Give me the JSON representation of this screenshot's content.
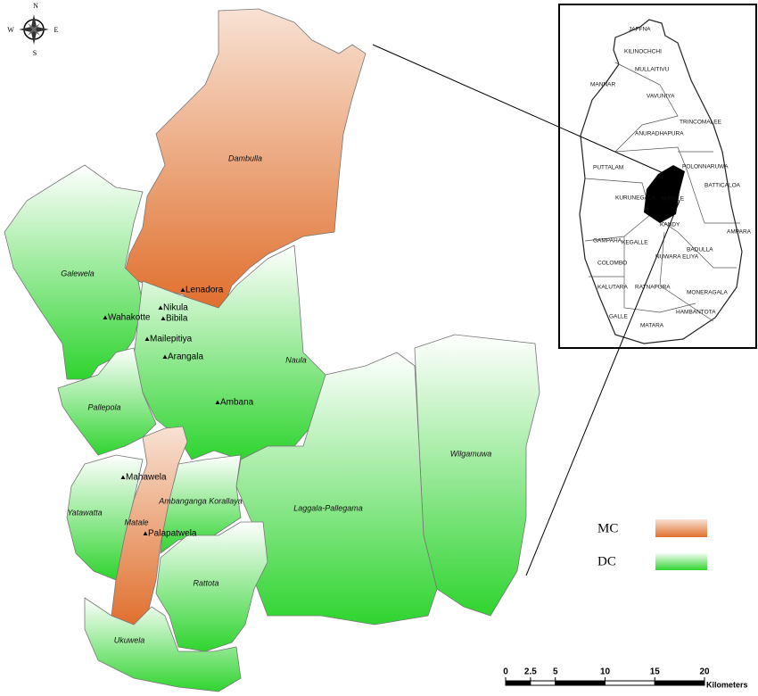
{
  "compass": {
    "north": "N",
    "east": "E",
    "south": "S",
    "west": "W"
  },
  "regions": [
    "Dambulla",
    "Galewela",
    "Naula",
    "Pallepola",
    "Wilgamuwa",
    "Laggala-Pallegama",
    "Ambanganga Korallaya",
    "Yatawatta",
    "Matale",
    "Rattota",
    "Ukuwela"
  ],
  "towns": [
    "Lenadora",
    "Nikula",
    "Bibila",
    "Wahakotte",
    "Mailepitiya",
    "Arangala",
    "Ambana",
    "Mahawela",
    "Palapatwela"
  ],
  "inset_districts": [
    "JAFFNA",
    "KILINOCHCHI",
    "MULLAITIVU",
    "MANNAR",
    "VAVUNIYA",
    "TRINCOMALEE",
    "ANURADHAPURA",
    "POLONNARUWA",
    "PUTTALAM",
    "KURUNEGALA",
    "MATALE",
    "BATTICALOA",
    "KANDY",
    "AMPARA",
    "GAMPAHA",
    "KEGALLE",
    "BADULLA",
    "COLOMBO",
    "NUWARA ELIYA",
    "KALUTARA",
    "RATNAPURA",
    "MONERAGALA",
    "GALLE",
    "HAMBANTOTA",
    "MATARA"
  ],
  "legend": [
    {
      "label": "MC",
      "color": "#e0702e"
    },
    {
      "label": "DC",
      "color": "#2fd42f"
    }
  ],
  "scale_bar": {
    "ticks": [
      0,
      2.5,
      5,
      10,
      15,
      20
    ],
    "unit": "Kilometers"
  }
}
